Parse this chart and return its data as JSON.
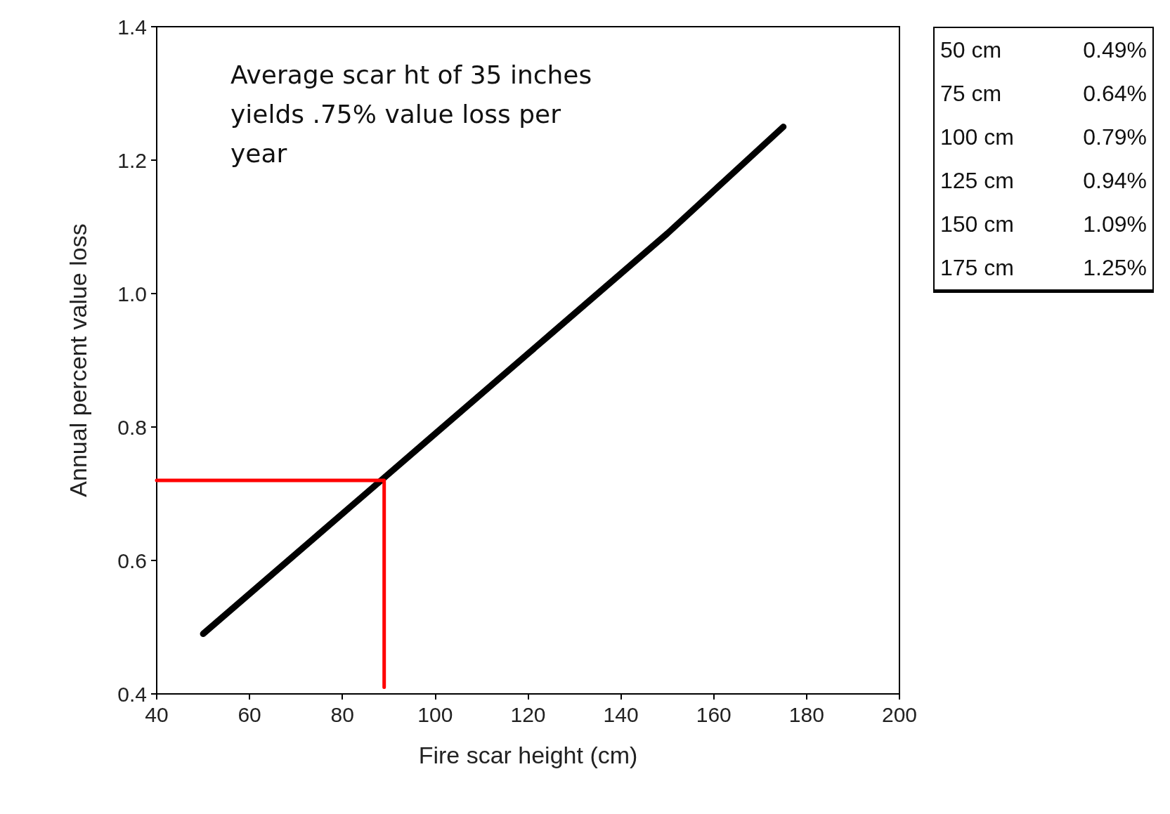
{
  "chart_data": {
    "type": "line",
    "xlabel": "Fire scar height (cm)",
    "ylabel": "Annual percent value loss",
    "xlim": [
      40,
      200
    ],
    "ylim": [
      0.4,
      1.4
    ],
    "xticks": [
      40,
      60,
      80,
      100,
      120,
      140,
      160,
      180,
      200
    ],
    "yticks": [
      0.4,
      0.6,
      0.8,
      {
        "value": 1,
        "label": "1.0"
      },
      1.2,
      1.4
    ],
    "grid": false,
    "marker": "none",
    "line_style": "solid",
    "series": [
      {
        "color": "#000000",
        "x": [
          50,
          75,
          100,
          125,
          150,
          175
        ],
        "values": [
          0.49,
          0.64,
          0.79,
          0.94,
          1.09,
          1.25
        ]
      },
      {
        "color": "#ff0000",
        "x": [
          40,
          89,
          89
        ],
        "values": [
          0.72,
          0.72,
          0.41
        ]
      }
    ],
    "annotations": [
      "Average scar ht of 35 inches yields .75% value loss per year",
      "50 cm",
      "0.49%",
      "75 cm",
      "0.64%",
      "100 cm",
      "0.79%",
      "125 cm",
      "0.94%",
      "150 cm",
      "1.09%",
      "175 cm",
      "1.25%"
    ]
  }
}
